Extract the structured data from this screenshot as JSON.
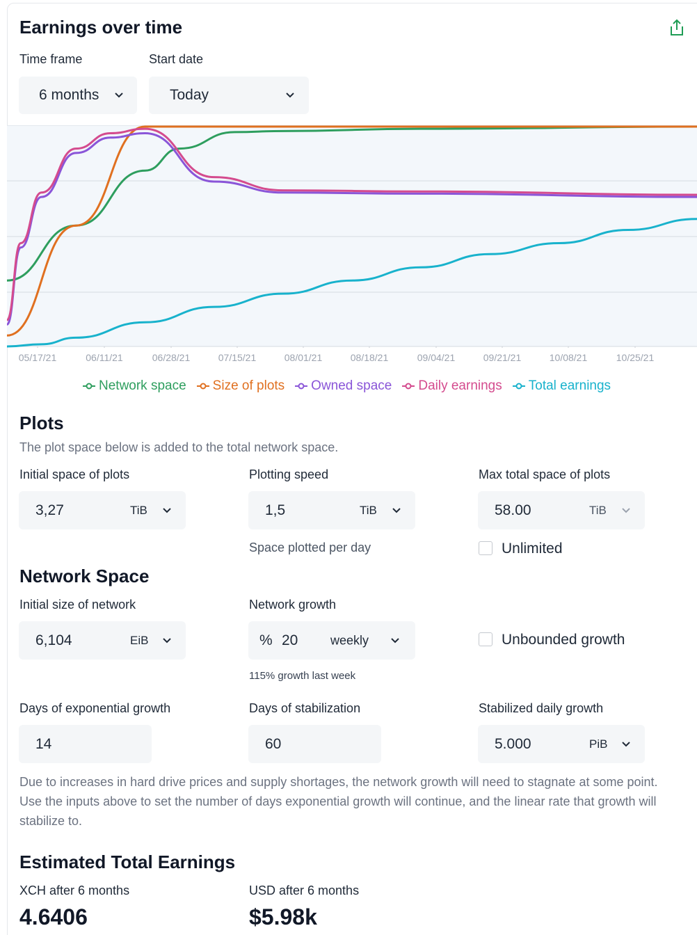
{
  "header": {
    "title": "Earnings over time",
    "share_icon": "share-icon"
  },
  "controls": {
    "time_frame_label": "Time frame",
    "time_frame_value": "6 months",
    "start_date_label": "Start date",
    "start_date_value": "Today"
  },
  "chart_data": {
    "type": "line",
    "x_ticks": [
      "05/17/21",
      "06/11/21",
      "06/28/21",
      "07/15/21",
      "08/01/21",
      "08/18/21",
      "09/04/21",
      "09/21/21",
      "10/08/21",
      "10/25/21"
    ],
    "y_normalized_range": [
      0,
      1
    ],
    "grid": true,
    "legend_position": "bottom",
    "series": [
      {
        "name": "Network space",
        "color": "#2e9e5e",
        "x": [
          0,
          10,
          20,
          25,
          33,
          40,
          60,
          100
        ],
        "y": [
          0.3,
          0.55,
          0.8,
          0.9,
          0.975,
          0.98,
          0.99,
          1.0
        ]
      },
      {
        "name": "Size of plots",
        "color": "#e07020",
        "x": [
          0,
          10,
          20,
          40,
          60,
          100
        ],
        "y": [
          0.05,
          0.55,
          1.0,
          1.0,
          1.0,
          1.0
        ]
      },
      {
        "name": "Owned space",
        "color": "#8a55d8",
        "x": [
          0,
          2,
          5,
          10,
          15,
          20,
          30,
          40,
          60,
          100
        ],
        "y": [
          0.1,
          0.45,
          0.68,
          0.88,
          0.95,
          0.97,
          0.75,
          0.7,
          0.695,
          0.68
        ]
      },
      {
        "name": "Daily earnings",
        "color": "#d44b8e",
        "x": [
          0,
          2,
          5,
          10,
          15,
          20,
          30,
          40,
          60,
          100
        ],
        "y": [
          0.12,
          0.47,
          0.7,
          0.9,
          0.97,
          0.99,
          0.77,
          0.71,
          0.705,
          0.69
        ]
      },
      {
        "name": "Total earnings",
        "color": "#18b2cc",
        "x": [
          0,
          5,
          10,
          20,
          30,
          40,
          50,
          60,
          70,
          80,
          90,
          100
        ],
        "y": [
          0.0,
          0.01,
          0.04,
          0.11,
          0.18,
          0.24,
          0.3,
          0.36,
          0.42,
          0.47,
          0.53,
          0.58
        ]
      }
    ]
  },
  "legend": [
    {
      "label": "Network space",
      "color": "#2e9e5e"
    },
    {
      "label": "Size of plots",
      "color": "#e07020"
    },
    {
      "label": "Owned space",
      "color": "#8a55d8"
    },
    {
      "label": "Daily earnings",
      "color": "#d44b8e"
    },
    {
      "label": "Total earnings",
      "color": "#18b2cc"
    }
  ],
  "plots": {
    "title": "Plots",
    "description": "The plot space below is added to the total network space.",
    "initial_label": "Initial space of plots",
    "initial_value": "3,27",
    "initial_unit": "TiB",
    "speed_label": "Plotting speed",
    "speed_value": "1,5",
    "speed_unit": "TiB",
    "speed_hint": "Space plotted per day",
    "max_label": "Max total space of plots",
    "max_value": "58.00",
    "max_unit": "TiB",
    "unlimited_label": "Unlimited"
  },
  "network": {
    "title": "Network Space",
    "initial_label": "Initial size of network",
    "initial_value": "6,104",
    "initial_unit": "EiB",
    "growth_label": "Network growth",
    "growth_prefix": "%",
    "growth_value": "20",
    "growth_period": "weekly",
    "growth_hint": "115% growth last week",
    "unbounded_label": "Unbounded growth",
    "exp_days_label": "Days of exponential growth",
    "exp_days_value": "14",
    "stab_days_label": "Days of stabilization",
    "stab_days_value": "60",
    "stab_growth_label": "Stabilized daily growth",
    "stab_growth_value": "5.000",
    "stab_growth_unit": "PiB",
    "note": "Due to increases in hard drive prices and supply shortages, the network growth will need to stagnate at some point. Use the inputs above to set the number of days exponential growth will continue, and the linear rate that growth will stabilize to."
  },
  "earnings": {
    "title": "Estimated Total Earnings",
    "xch_label": "XCH after 6 months",
    "xch_value": "4.6406",
    "usd_label": "USD after 6 months",
    "usd_value": "$5.98k"
  }
}
